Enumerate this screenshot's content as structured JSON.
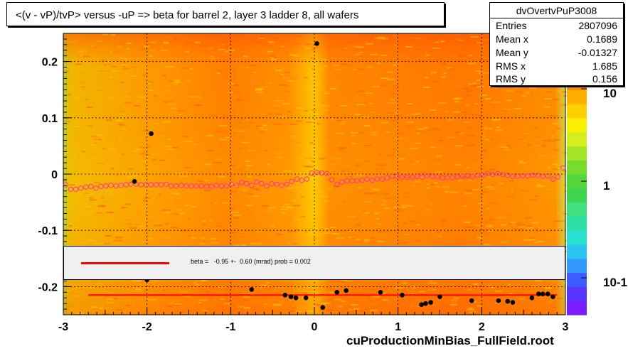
{
  "title": "<(v - vP)/tvP> versus  -uP => beta for barrel 2, layer 3 ladder 8, all wafers",
  "stats": {
    "name": "dvOvertvPuP3008",
    "rows": [
      {
        "label": "Entries",
        "value": "2807096"
      },
      {
        "label": "Mean x",
        "value": "0.1689"
      },
      {
        "label": "Mean y",
        "value": "-0.01327"
      },
      {
        "label": "RMS x",
        "value": "1.685"
      },
      {
        "label": "RMS y",
        "value": "0.156"
      }
    ]
  },
  "fit": {
    "text": "beta =   -0.95 +-  0.60 (mrad) prob = 0.002",
    "color": "#ff0000"
  },
  "footer": "cuProductionMinBias_FullField.root",
  "chart_data": {
    "type": "scatter",
    "title": "<(v - vP)/tvP> versus  -uP => beta for barrel 2, layer 3 ladder 8, all wafers",
    "xlim": [
      -3,
      3
    ],
    "ylim": [
      -0.25,
      0.25
    ],
    "x_ticks": [
      -3,
      -2,
      -1,
      0,
      1,
      2,
      3
    ],
    "y_ticks": [
      -0.2,
      -0.1,
      0,
      0.1,
      0.2
    ],
    "y_tick_labels": [
      "-0.2",
      "-0.1",
      "0",
      "0.1",
      "0.2"
    ],
    "grid": true,
    "colorbar": {
      "scale": "log",
      "tick_labels": [
        "10",
        "1",
        "10-1"
      ]
    },
    "series": [
      {
        "marker": "open-circle",
        "color": "#ff3399",
        "x": [
          -2.97,
          -2.91,
          -2.85,
          -2.79,
          -2.73,
          -2.67,
          -2.61,
          -2.55,
          -2.49,
          -2.43,
          -2.37,
          -2.31,
          -2.25,
          -2.19,
          -2.13,
          -2.07,
          -2.01,
          -1.95,
          -1.89,
          -1.83,
          -1.77,
          -1.71,
          -1.65,
          -1.59,
          -1.53,
          -1.47,
          -1.41,
          -1.35,
          -1.29,
          -1.23,
          -1.17,
          -1.11,
          -1.05,
          -0.99,
          -0.93,
          -0.87,
          -0.81,
          -0.75,
          -0.69,
          -0.63,
          -0.57,
          -0.51,
          -0.45,
          -0.39,
          -0.33,
          -0.27,
          -0.21,
          -0.15,
          -0.09,
          -0.03,
          0.03,
          0.09,
          0.15,
          0.21,
          0.27,
          0.33,
          0.39,
          0.45,
          0.51,
          0.57,
          0.63,
          0.69,
          0.75,
          0.81,
          0.87,
          0.93,
          0.99,
          1.05,
          1.11,
          1.17,
          1.23,
          1.29,
          1.35,
          1.41,
          1.47,
          1.53,
          1.59,
          1.65,
          1.71,
          1.77,
          1.83,
          1.89,
          1.95,
          2.01,
          2.07,
          2.13,
          2.19,
          2.25,
          2.31,
          2.37,
          2.43,
          2.49,
          2.55,
          2.61,
          2.67,
          2.73,
          2.79,
          2.85,
          2.91,
          2.97
        ],
        "y": [
          -0.019,
          -0.027,
          -0.027,
          -0.025,
          -0.023,
          -0.022,
          -0.025,
          -0.022,
          -0.021,
          -0.02,
          -0.021,
          -0.02,
          -0.019,
          -0.018,
          -0.018,
          -0.019,
          -0.019,
          -0.019,
          -0.019,
          -0.019,
          -0.018,
          -0.021,
          -0.021,
          -0.02,
          -0.021,
          -0.021,
          -0.021,
          -0.021,
          -0.022,
          -0.022,
          -0.02,
          -0.021,
          -0.021,
          -0.018,
          -0.02,
          -0.015,
          -0.017,
          -0.02,
          -0.014,
          -0.017,
          -0.021,
          -0.017,
          -0.018,
          -0.02,
          -0.018,
          -0.013,
          -0.009,
          -0.011,
          -0.009,
          0.002,
          0.003,
          0.002,
          0.001,
          -0.01,
          -0.018,
          -0.014,
          -0.012,
          -0.012,
          -0.012,
          -0.011,
          -0.009,
          -0.011,
          -0.009,
          -0.009,
          -0.007,
          -0.004,
          -0.004,
          -0.005,
          -0.006,
          -0.006,
          -0.004,
          -0.005,
          -0.003,
          -0.004,
          -0.005,
          -0.007,
          -0.006,
          -0.006,
          -0.005,
          -0.004,
          -0.003,
          -0.004,
          -0.002,
          -0.002,
          0.001,
          -0.001,
          0.001,
          -0.001,
          -0.002,
          -0.004,
          -0.004,
          -0.003,
          -0.003,
          -0.002,
          -0.002,
          -0.004,
          -0.003,
          -0.009,
          -0.005,
          0.011
        ]
      },
      {
        "marker": "filled-circle",
        "color": "#000000",
        "x": [
          -1.95,
          0.03,
          -2.15,
          -2.0,
          -0.75,
          -0.35,
          -0.28,
          -0.22,
          -0.1,
          0.1,
          0.27,
          0.38,
          0.79,
          1.05,
          1.28,
          1.33,
          1.39,
          1.5,
          1.88,
          2.2,
          2.31,
          2.37,
          2.6,
          2.68,
          2.73,
          2.79,
          2.85
        ],
        "y": [
          0.072,
          0.232,
          -0.013,
          -0.188,
          -0.205,
          -0.215,
          -0.218,
          -0.22,
          -0.22,
          -0.237,
          -0.21,
          -0.207,
          -0.21,
          -0.215,
          -0.232,
          -0.23,
          -0.228,
          -0.218,
          -0.225,
          -0.225,
          -0.226,
          -0.228,
          -0.22,
          -0.213,
          -0.213,
          -0.213,
          -0.218
        ]
      }
    ],
    "fit_line": {
      "x": [
        -2.7,
        2.9
      ],
      "y": [
        -0.215,
        -0.215
      ]
    }
  }
}
